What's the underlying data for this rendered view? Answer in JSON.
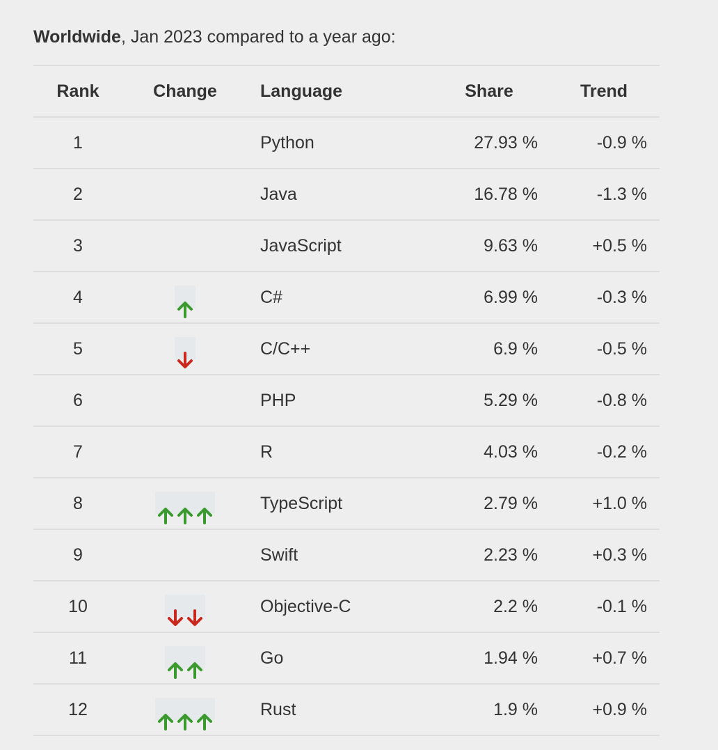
{
  "caption": {
    "bold": "Worldwide",
    "rest": ", Jan 2023 compared to a year ago:"
  },
  "table": {
    "headers": {
      "rank": "Rank",
      "change": "Change",
      "language": "Language",
      "share": "Share",
      "trend": "Trend"
    },
    "rows": [
      {
        "rank": "1",
        "change": "",
        "language": "Python",
        "share": "27.93 %",
        "trend": "-0.9 %"
      },
      {
        "rank": "2",
        "change": "",
        "language": "Java",
        "share": "16.78 %",
        "trend": "-1.3 %"
      },
      {
        "rank": "3",
        "change": "",
        "language": "JavaScript",
        "share": "9.63 %",
        "trend": "+0.5 %"
      },
      {
        "rank": "4",
        "change": "up-1",
        "language": "C#",
        "share": "6.99 %",
        "trend": "-0.3 %"
      },
      {
        "rank": "5",
        "change": "down-1",
        "language": "C/C++",
        "share": "6.9 %",
        "trend": "-0.5 %"
      },
      {
        "rank": "6",
        "change": "",
        "language": "PHP",
        "share": "5.29 %",
        "trend": "-0.8 %"
      },
      {
        "rank": "7",
        "change": "",
        "language": "R",
        "share": "4.03 %",
        "trend": "-0.2 %"
      },
      {
        "rank": "8",
        "change": "up-3",
        "language": "TypeScript",
        "share": "2.79 %",
        "trend": "+1.0 %"
      },
      {
        "rank": "9",
        "change": "",
        "language": "Swift",
        "share": "2.23 %",
        "trend": "+0.3 %"
      },
      {
        "rank": "10",
        "change": "down-2",
        "language": "Objective-C",
        "share": "2.2 %",
        "trend": "-0.1 %"
      },
      {
        "rank": "11",
        "change": "up-2",
        "language": "Go",
        "share": "1.94 %",
        "trend": "+0.7 %"
      },
      {
        "rank": "12",
        "change": "up-3",
        "language": "Rust",
        "share": "1.9 %",
        "trend": "+0.9 %"
      }
    ]
  },
  "icons": {
    "up": "arrow-up-icon",
    "down": "arrow-down-icon"
  },
  "colors": {
    "up_arrow": "#3a9a2e",
    "down_arrow": "#c8281e",
    "background": "#eeeeee",
    "rule": "#dddddd",
    "text": "#333333"
  }
}
